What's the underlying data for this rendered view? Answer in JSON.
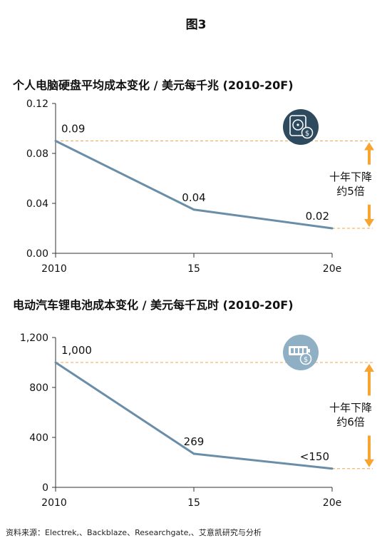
{
  "figure_title": "图3",
  "source_note": "资料来源：Electrek,、Backblaze、Researchgate,、艾意凯研究与分析",
  "colors": {
    "line": "#6b8ea8",
    "guide": "#f4a54a",
    "arrow": "#f7a530",
    "axis": "#333333",
    "icon_hdd_bg": "#2d4a5e",
    "icon_battery_bg": "#8fb0c4"
  },
  "chart_data": [
    {
      "type": "line",
      "title": "个人电脑硬盘平均成本变化 / 美元每千兆 (2010-20F)",
      "categories": [
        "2010",
        "15",
        "20e"
      ],
      "values": [
        0.09,
        0.035,
        0.02
      ],
      "data_labels": [
        "0.09",
        "0.04",
        "0.02"
      ],
      "yticks": [
        "0.12",
        "0.08",
        "0.04",
        "0.00"
      ],
      "ylim": [
        0,
        0.12
      ],
      "icon": "hard-drive-dollar-icon",
      "annotation": [
        "十年下降",
        "约5倍"
      ],
      "grid": false
    },
    {
      "type": "line",
      "title": "电动汽车锂电池成本变化 / 美元每千瓦时 (2010-20F)",
      "categories": [
        "2010",
        "15",
        "20e"
      ],
      "values": [
        1000,
        269,
        150
      ],
      "data_labels": [
        "1,000",
        "269",
        "<150"
      ],
      "yticks": [
        "1,200",
        "800",
        "400",
        "0"
      ],
      "ylim": [
        0,
        1200
      ],
      "icon": "battery-dollar-icon",
      "annotation": [
        "十年下降",
        "约6倍"
      ],
      "grid": false
    }
  ]
}
